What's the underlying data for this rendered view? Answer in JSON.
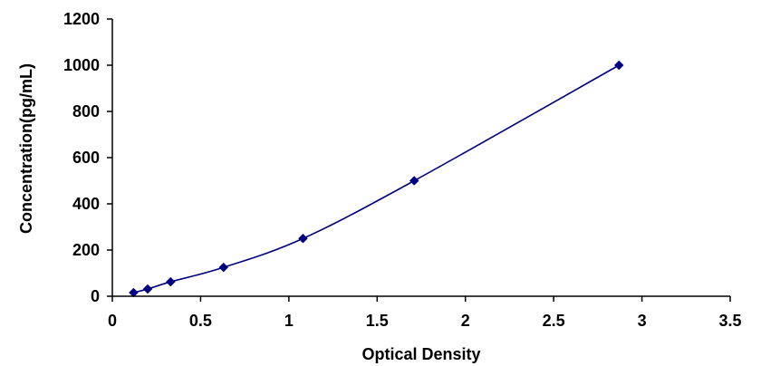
{
  "chart_data": {
    "type": "scatter",
    "title": "",
    "xlabel": "Optical Density",
    "ylabel": "Concentration(pg/mL)",
    "xlim": [
      0,
      3.5
    ],
    "ylim": [
      0,
      1200
    ],
    "x_ticks": [
      "0",
      "0.5",
      "1",
      "1.5",
      "2",
      "2.5",
      "3",
      "3.5"
    ],
    "y_ticks": [
      "0",
      "200",
      "400",
      "600",
      "800",
      "1000",
      "1200"
    ],
    "grid": false,
    "legend": "none",
    "line": "smooth",
    "series": [
      {
        "color": "#000080",
        "marker": "diamond",
        "points": [
          {
            "x": 0.12,
            "y": 15.6
          },
          {
            "x": 0.2,
            "y": 31.2
          },
          {
            "x": 0.33,
            "y": 62.5
          },
          {
            "x": 0.63,
            "y": 125
          },
          {
            "x": 1.08,
            "y": 250
          },
          {
            "x": 1.71,
            "y": 500
          },
          {
            "x": 2.87,
            "y": 1000
          }
        ]
      }
    ]
  }
}
